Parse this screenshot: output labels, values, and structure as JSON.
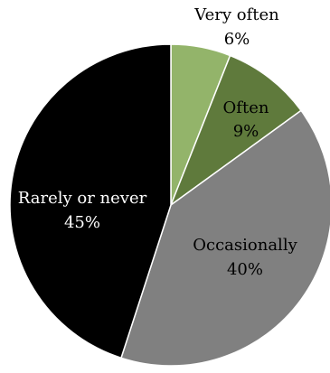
{
  "chart_data": {
    "type": "pie",
    "direction": "clockwise",
    "start": "top",
    "slices": [
      {
        "label": "Very often",
        "value": 6,
        "value_label": "6%",
        "color": "#93b46a",
        "text_color": "#000000",
        "label_placement": "outside"
      },
      {
        "label": "Often",
        "value": 9,
        "value_label": "9%",
        "color": "#5f7a3c",
        "text_color": "#000000",
        "label_placement": "inside"
      },
      {
        "label": "Occasionally",
        "value": 40,
        "value_label": "40%",
        "color": "#808080",
        "text_color": "#000000",
        "label_placement": "inside"
      },
      {
        "label": "Rarely or never",
        "value": 45,
        "value_label": "45%",
        "color": "#000000",
        "text_color": "#ffffff",
        "label_placement": "inside"
      }
    ],
    "slice_border_color": "#ffffff"
  }
}
